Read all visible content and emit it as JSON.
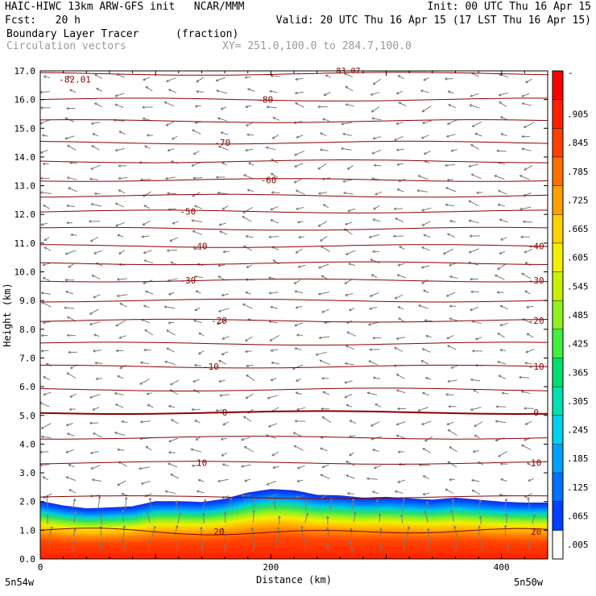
{
  "header": {
    "title_left": "HAIC-HIWC 13km ARW-GFS init   NCAR/MMM",
    "init": "Init: 00 UTC Thu 16 Apr 15",
    "fcst": "Fcst:   20 h",
    "valid": "Valid: 20 UTC Thu 16 Apr 15 (17 LST Thu 16 Apr 15)",
    "field_name": "Boundary Layer Tracer",
    "field_units": "(fraction)",
    "vector_label": "Circulation vectors",
    "xy_label": "XY= 251.0,100.0 to 284.7,100.0"
  },
  "chart_data": {
    "type": "cross-section",
    "title": "Boundary Layer Tracer",
    "units": "fraction",
    "xlabel": "Distance (km)",
    "ylabel": "Height (km)",
    "xlim": [
      0,
      440
    ],
    "ylim": [
      0,
      17
    ],
    "x_ticks": [
      "0",
      "200",
      "400"
    ],
    "x_tick_values": [
      0,
      200,
      400
    ],
    "x_end_labels": {
      "left": "5n54w",
      "right": "5n50w"
    },
    "y_ticks": [
      "0.0",
      "1.0",
      "2.0",
      "3.0",
      "4.0",
      "5.0",
      "6.0",
      "7.0",
      "8.0",
      "9.0",
      "10.0",
      "11.0",
      "12.0",
      "13.0",
      "14.0",
      "15.0",
      "16.0",
      "17.0"
    ],
    "colorbar": {
      "labels": [
        ".005",
        ".065",
        ".125",
        ".185",
        ".245",
        ".305",
        ".365",
        ".425",
        ".485",
        ".545",
        ".605",
        ".665",
        ".725",
        ".785",
        ".845",
        ".905"
      ],
      "top_label": "-",
      "colors": [
        "#ffffff",
        "#0040ff",
        "#0070ff",
        "#00a0ff",
        "#00d0f0",
        "#00e0b0",
        "#00e070",
        "#40f040",
        "#90f020",
        "#c8f000",
        "#f0f000",
        "#ffd000",
        "#ffa000",
        "#ff7000",
        "#ff4000",
        "#ff2000",
        "#ff0000"
      ]
    },
    "tracer_top": {
      "x": [
        0,
        20,
        40,
        60,
        80,
        100,
        120,
        140,
        160,
        180,
        200,
        220,
        240,
        260,
        280,
        300,
        320,
        340,
        360,
        380,
        400,
        420,
        440
      ],
      "height": [
        2.0,
        1.85,
        1.75,
        1.78,
        1.82,
        2.0,
        2.0,
        1.97,
        2.08,
        2.3,
        2.42,
        2.38,
        2.22,
        2.2,
        2.12,
        2.15,
        2.1,
        2.05,
        2.12,
        2.05,
        1.98,
        1.95,
        1.95
      ]
    },
    "temperature_contours": [
      {
        "value": -82.01,
        "label": "-82.01"
      },
      {
        "value": -80,
        "label": "-80",
        "height": 16.0
      },
      {
        "value": -70,
        "label": "-70",
        "height": 14.5
      },
      {
        "value": -60,
        "label": "-60",
        "height": 13.2
      },
      {
        "value": -50,
        "label": "-50",
        "height": 12.1
      },
      {
        "value": -40,
        "label": "-40",
        "height": 10.9
      },
      {
        "value": -30,
        "label": "-30",
        "height": 9.7
      },
      {
        "value": -20,
        "label": "-20",
        "height": 8.3
      },
      {
        "value": -10,
        "label": "-10",
        "height": 6.7
      },
      {
        "value": 0,
        "label": "0",
        "height": 5.1
      },
      {
        "value": 10,
        "label": "10",
        "height": 3.35
      },
      {
        "value": 20,
        "label": "20",
        "height": 0.95
      }
    ],
    "top_partial_label": "-83.07"
  }
}
